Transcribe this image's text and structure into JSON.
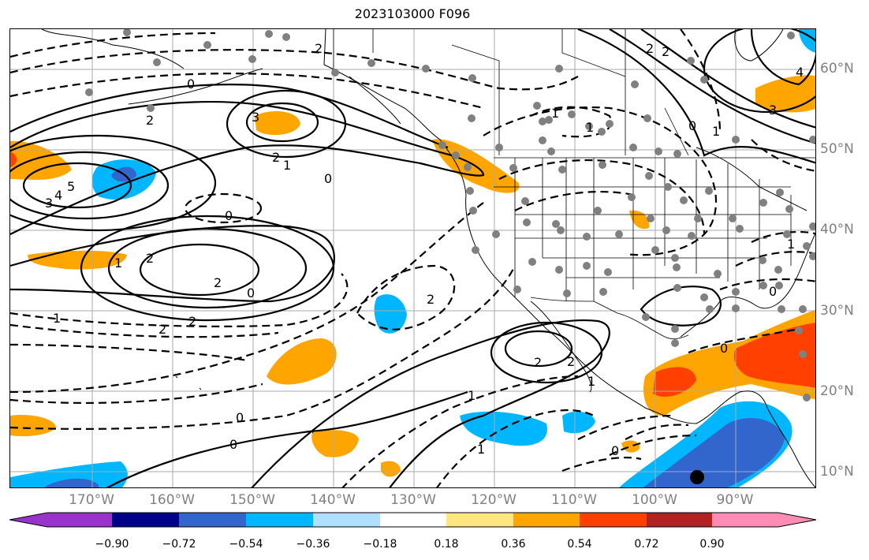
{
  "title": "2023103000 F096",
  "lat_labels": [
    "60°N",
    "50°N",
    "40°N",
    "30°N",
    "20°N",
    "10°N"
  ],
  "lon_labels": [
    "170°W",
    "160°W",
    "150°W",
    "140°W",
    "130°W",
    "120°W",
    "110°W",
    "100°W",
    "90°W"
  ],
  "colorbar": {
    "colors": [
      "#9933cc",
      "#000088",
      "#3366cc",
      "#00b7ff",
      "#b0e0ff",
      "#ffffff",
      "#ffe680",
      "#ffa500",
      "#ff4000",
      "#b22222",
      "#ff8cb4"
    ],
    "tick_labels": [
      "−0.90",
      "−0.72",
      "−0.54",
      "−0.36",
      "−0.18",
      "0.18",
      "0.36",
      "0.54",
      "0.72",
      "0.90"
    ]
  },
  "contour_labels": [
    {
      "text": "2"
    },
    {
      "text": "0"
    },
    {
      "text": "2"
    },
    {
      "text": "3"
    },
    {
      "text": "2"
    },
    {
      "text": "1"
    },
    {
      "text": "0"
    },
    {
      "text": "5"
    },
    {
      "text": "4"
    },
    {
      "text": "3"
    },
    {
      "text": "0"
    },
    {
      "text": "1"
    },
    {
      "text": "2"
    },
    {
      "text": "2"
    },
    {
      "text": "0"
    },
    {
      "text": "1"
    },
    {
      "text": "2"
    },
    {
      "text": "2"
    },
    {
      "text": "2"
    },
    {
      "text": "2"
    },
    {
      "text": "1"
    },
    {
      "text": "0"
    },
    {
      "text": "0"
    },
    {
      "text": "1"
    },
    {
      "text": "0"
    },
    {
      "text": "0"
    },
    {
      "text": "1"
    },
    {
      "text": "2"
    },
    {
      "text": "1"
    },
    {
      "text": "4"
    },
    {
      "text": "3"
    },
    {
      "text": "0"
    },
    {
      "text": "1"
    },
    {
      "text": "1"
    },
    {
      "text": "2"
    },
    {
      "text": "2"
    },
    {
      "text": "1"
    },
    {
      "text": "0"
    }
  ]
}
